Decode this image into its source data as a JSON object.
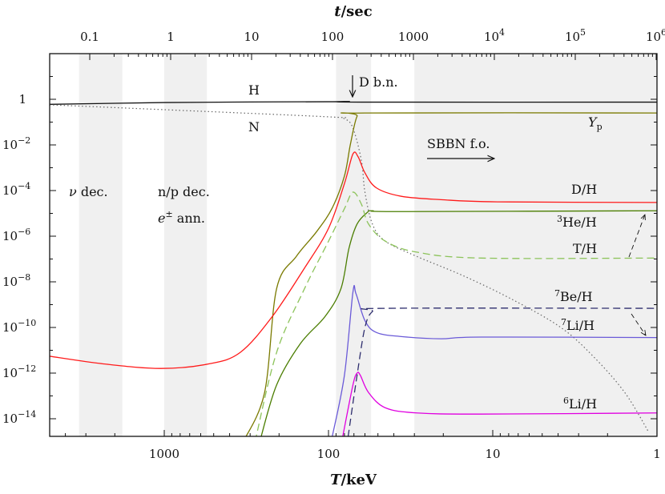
{
  "chart_data": {
    "type": "line",
    "xlabel": {
      "var": "T",
      "unit": "/keV"
    },
    "top_xlabel": {
      "var": "t",
      "unit": "/sec"
    },
    "x_scale": "log",
    "x_reversed": true,
    "xlim": [
      5000,
      1
    ],
    "y_scale": "log",
    "ylim": [
      1.6e-15,
      100
    ],
    "x_ticks": [
      {
        "v": 1000,
        "label": "1000"
      },
      {
        "v": 100,
        "label": "100"
      },
      {
        "v": 10,
        "label": "10"
      },
      {
        "v": 1,
        "label": "1"
      }
    ],
    "top_ticks": [
      {
        "label": "0.1",
        "base": "",
        "exp": ""
      },
      {
        "label": "1",
        "base": "",
        "exp": ""
      },
      {
        "label": "10",
        "base": "",
        "exp": ""
      },
      {
        "label": "100",
        "base": "",
        "exp": ""
      },
      {
        "label": "1000",
        "base": "",
        "exp": ""
      },
      {
        "label": "",
        "base": "10",
        "exp": "4"
      },
      {
        "label": "",
        "base": "10",
        "exp": "5"
      },
      {
        "label": "",
        "base": "10",
        "exp": "6"
      }
    ],
    "y_ticks": [
      {
        "v": 1,
        "base": "1",
        "exp": ""
      },
      {
        "v": 0.01,
        "base": "10",
        "exp": "−2"
      },
      {
        "v": 0.0001,
        "base": "10",
        "exp": "−4"
      },
      {
        "v": 1e-06,
        "base": "10",
        "exp": "−6"
      },
      {
        "v": 1e-08,
        "base": "10",
        "exp": "−8"
      },
      {
        "v": 1e-10,
        "base": "10",
        "exp": "−10"
      },
      {
        "v": 1e-12,
        "base": "10",
        "exp": "−12"
      },
      {
        "v": 1e-14,
        "base": "10",
        "exp": "−14"
      }
    ],
    "shaded_bands_T_keV": [
      [
        3300,
        1800
      ],
      [
        1000,
        550
      ],
      [
        90,
        55
      ],
      [
        30,
        1
      ]
    ],
    "series": [
      {
        "name": "H",
        "color": "#111111",
        "style": "solid",
        "points": [
          [
            5000,
            0.6
          ],
          [
            1000,
            0.72
          ],
          [
            300,
            0.76
          ],
          [
            100,
            0.78
          ],
          [
            75,
            0.8
          ],
          [
            62,
            0.75
          ],
          [
            1,
            0.75
          ]
        ]
      },
      {
        "name": "N",
        "color": "#666666",
        "style": "dotted",
        "points": [
          [
            5000,
            0.57
          ],
          [
            1000,
            0.35
          ],
          [
            100,
            0.17
          ],
          [
            80,
            0.14
          ],
          [
            71,
            0.055
          ],
          [
            63,
            0.002
          ],
          [
            60,
            8.5e-05
          ],
          [
            54,
            3.4e-06
          ],
          [
            45,
            6e-07
          ],
          [
            29,
            1.3e-07
          ],
          [
            15,
            1.8e-08
          ],
          [
            7.5,
            1.6e-09
          ],
          [
            3.85,
            1e-10
          ],
          [
            2.45,
            5.5e-12
          ],
          [
            1.57,
            1.4e-13
          ],
          [
            1.12,
            2.5e-15
          ]
        ]
      },
      {
        "name": "Yp",
        "color": "#7a7a00",
        "style": "solid",
        "points": [
          [
            330,
            1e-15
          ],
          [
            245,
            1.4e-13
          ],
          [
            207,
            5e-09
          ],
          [
            157,
            1.3e-07
          ],
          [
            118,
            1.6e-06
          ],
          [
            95,
            1.7e-05
          ],
          [
            80,
            0.00043
          ],
          [
            73.5,
            0.011
          ],
          [
            67,
            0.18
          ],
          [
            60,
            0.25
          ],
          [
            1,
            0.25
          ]
        ]
      },
      {
        "name": "D/H",
        "color": "#ff1a1a",
        "style": "solid",
        "points": [
          [
            5000,
            5.5e-12
          ],
          [
            2300,
            2.5e-12
          ],
          [
            1050,
            1.6e-12
          ],
          [
            540,
            2.5e-12
          ],
          [
            345,
            8e-12
          ],
          [
            220,
            3e-10
          ],
          [
            140,
            4e-08
          ],
          [
            100,
            2.2e-06
          ],
          [
            80,
            0.0002
          ],
          [
            71,
            0.004
          ],
          [
            66,
            0.003
          ],
          [
            60,
            0.0006
          ],
          [
            51,
            0.00013
          ],
          [
            36,
            5.6e-05
          ],
          [
            20.7,
            4e-05
          ],
          [
            9.4,
            3.2e-05
          ],
          [
            1,
            3e-05
          ]
        ]
      },
      {
        "name": "3He/H",
        "color": "#4a7d00",
        "style": "solid",
        "points": [
          [
            262,
            1e-15
          ],
          [
            207,
            3e-13
          ],
          [
            148,
            2e-11
          ],
          [
            105,
            3e-10
          ],
          [
            84,
            5e-09
          ],
          [
            75,
            3e-07
          ],
          [
            67,
            3.4e-06
          ],
          [
            58,
            1.1e-05
          ],
          [
            54,
            1.3e-05
          ],
          [
            36,
            1.2e-05
          ],
          [
            1,
            1.3e-05
          ]
        ]
      },
      {
        "name": "T/H",
        "color": "#8cc35a",
        "style": "dashed",
        "points": [
          [
            280,
            1e-15
          ],
          [
            207,
            8e-12
          ],
          [
            140,
            5e-09
          ],
          [
            100,
            6e-07
          ],
          [
            80,
            1.6e-05
          ],
          [
            71,
            8.5e-05
          ],
          [
            63,
            2.5e-05
          ],
          [
            57,
            3.4e-06
          ],
          [
            45,
            6e-07
          ],
          [
            29,
            2e-07
          ],
          [
            11.8,
            1.1e-07
          ],
          [
            1,
            1.1e-07
          ]
        ]
      },
      {
        "name": "7Be/H",
        "color": "#6a5ad8",
        "style": "solid",
        "points": [
          [
            95,
            1.6e-15
          ],
          [
            80,
            8e-13
          ],
          [
            71,
            3.5e-09
          ],
          [
            68,
            3e-09
          ],
          [
            60,
            2e-10
          ],
          [
            51,
            6e-11
          ],
          [
            36,
            4e-11
          ],
          [
            20.7,
            3.2e-11
          ],
          [
            11.8,
            3.8e-11
          ],
          [
            1,
            3.6e-11
          ]
        ]
      },
      {
        "name": "7Li/H",
        "color": "#2e2e6e",
        "style": "dashed",
        "points": [
          [
            76,
            1.6e-15
          ],
          [
            67,
            8e-13
          ],
          [
            60,
            1e-10
          ],
          [
            54,
            5e-10
          ],
          [
            45,
            6.9e-10
          ],
          [
            1,
            6.9e-10
          ]
        ]
      },
      {
        "name": "6Li/H",
        "color": "#e000e0",
        "style": "solid",
        "points": [
          [
            82,
            1.6e-15
          ],
          [
            71,
            3e-13
          ],
          [
            67,
            1e-12
          ],
          [
            64,
            8e-13
          ],
          [
            57,
            1.4e-13
          ],
          [
            45,
            3e-14
          ],
          [
            29,
            1.8e-14
          ],
          [
            11.8,
            1.6e-14
          ],
          [
            1,
            1.8e-14
          ]
        ]
      }
    ],
    "curve_labels": {
      "H": {
        "text": "H"
      },
      "N": {
        "text": "N"
      },
      "Yp": {
        "main": "Y",
        "sub": "p"
      },
      "DH": {
        "text": "D/H"
      },
      "He3": {
        "sup": "3",
        "text": "He/H"
      },
      "TH": {
        "text": "T/H"
      },
      "Be7": {
        "sup": "7",
        "text": "Be/H"
      },
      "Li7": {
        "sup": "7",
        "text": "Li/H"
      },
      "Li6": {
        "sup": "6",
        "text": "Li/H"
      }
    },
    "annotations": {
      "nu_dec": {
        "sym": "ν",
        "text": " dec."
      },
      "np_dec": "n/p dec.",
      "e_ann": {
        "sym": "e",
        "sup": "±",
        "text": " ann."
      },
      "d_bn": "D b.n.",
      "sbbn_fo": "SBBN f.o."
    }
  }
}
